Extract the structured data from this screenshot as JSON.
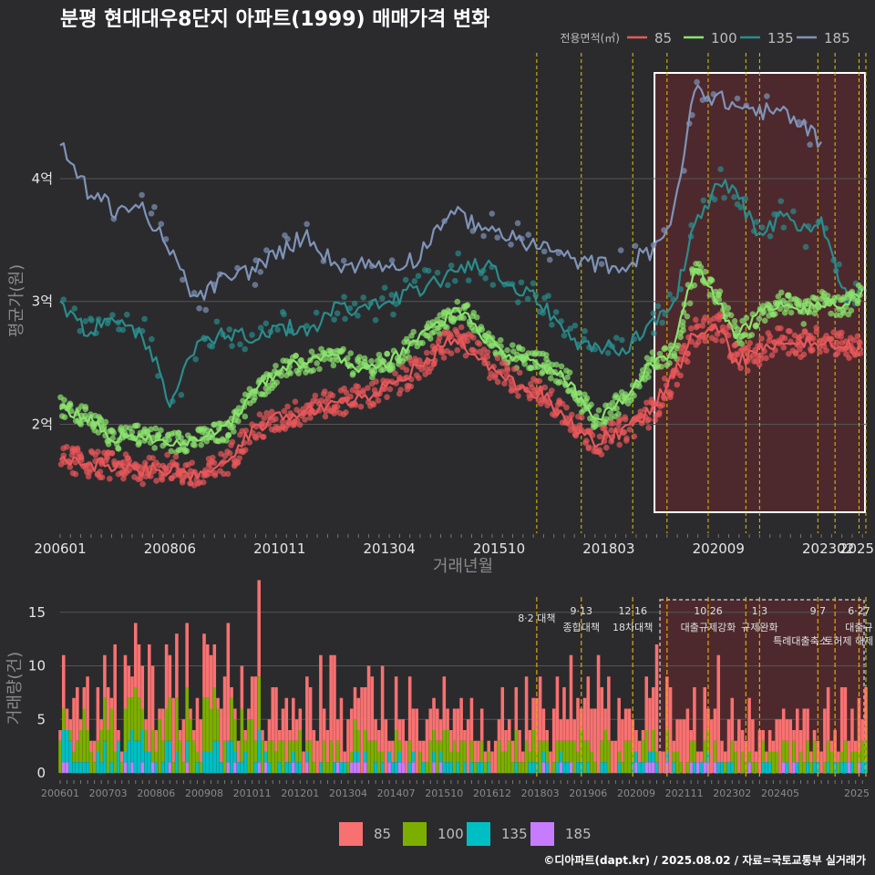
{
  "title": "분평 현대대우8단지 아파트(1999) 매매가격 변화",
  "legend_title": "전용면적(㎡)",
  "credit": "©디아파트(dapt.kr) / 2025.08.02 / 자료=국토교통부 실거래가",
  "colors": {
    "85": "#e8575a",
    "100": "#8be36e",
    "135": "#2a8c8c",
    "185": "#7f93b8"
  },
  "bar_colors": {
    "85": "#f87171",
    "100": "#7cae00",
    "135": "#00bfc4",
    "185": "#c77cff"
  },
  "chart_data": [
    {
      "type": "line",
      "xlabel": "거래년월",
      "ylabel": "평균가(원)",
      "x_tick_labels": [
        "200601",
        "200806",
        "201011",
        "201304",
        "201510",
        "201803",
        "202009",
        "202302",
        "2025"
      ],
      "y_ticks": [
        2,
        3,
        4
      ],
      "y_tick_labels": [
        "2억",
        "3억",
        "4억"
      ],
      "ylim": [
        1.15,
        4.95
      ],
      "xlim": [
        "2006-01",
        "2025-08"
      ],
      "highlight_region": {
        "from": "2020-09",
        "to": "2025-08"
      },
      "event_lines": [
        "2017-08",
        "2018-09",
        "2019-12",
        "2020-10",
        "2021-10",
        "2022-09",
        "2023-01",
        "2024-06",
        "2024-11",
        "2025-06",
        "2025-08"
      ],
      "series": [
        {
          "name": "85",
          "points": [
            [
              "2006-01",
              1.72
            ],
            [
              "2006-09",
              1.68
            ],
            [
              "2007-05",
              1.66
            ],
            [
              "2008-01",
              1.62
            ],
            [
              "2008-09",
              1.65
            ],
            [
              "2009-05",
              1.56
            ],
            [
              "2010-01",
              1.7
            ],
            [
              "2010-09",
              1.95
            ],
            [
              "2011-05",
              2.05
            ],
            [
              "2012-01",
              2.12
            ],
            [
              "2012-09",
              2.18
            ],
            [
              "2013-05",
              2.22
            ],
            [
              "2014-01",
              2.3
            ],
            [
              "2014-09",
              2.45
            ],
            [
              "2015-05",
              2.65
            ],
            [
              "2015-09",
              2.7
            ],
            [
              "2016-05",
              2.5
            ],
            [
              "2017-01",
              2.35
            ],
            [
              "2017-09",
              2.25
            ],
            [
              "2018-05",
              2.05
            ],
            [
              "2019-01",
              1.85
            ],
            [
              "2019-09",
              1.95
            ],
            [
              "2020-05",
              2.1
            ],
            [
              "2020-12",
              2.4
            ],
            [
              "2021-06",
              2.75
            ],
            [
              "2022-01",
              2.8
            ],
            [
              "2022-06",
              2.5
            ],
            [
              "2023-01",
              2.6
            ],
            [
              "2023-07",
              2.7
            ],
            [
              "2024-01",
              2.65
            ],
            [
              "2024-07",
              2.7
            ],
            [
              "2025-01",
              2.65
            ],
            [
              "2025-07",
              2.6
            ]
          ]
        },
        {
          "name": "100",
          "points": [
            [
              "2006-01",
              2.15
            ],
            [
              "2006-09",
              2.05
            ],
            [
              "2007-05",
              1.88
            ],
            [
              "2008-01",
              1.92
            ],
            [
              "2008-09",
              1.85
            ],
            [
              "2009-05",
              1.88
            ],
            [
              "2010-01",
              1.95
            ],
            [
              "2010-09",
              2.25
            ],
            [
              "2011-05",
              2.45
            ],
            [
              "2012-01",
              2.5
            ],
            [
              "2012-09",
              2.55
            ],
            [
              "2013-05",
              2.45
            ],
            [
              "2014-01",
              2.5
            ],
            [
              "2014-09",
              2.7
            ],
            [
              "2015-05",
              2.85
            ],
            [
              "2015-09",
              2.95
            ],
            [
              "2016-05",
              2.7
            ],
            [
              "2017-01",
              2.55
            ],
            [
              "2017-09",
              2.5
            ],
            [
              "2018-05",
              2.35
            ],
            [
              "2019-01",
              2.02
            ],
            [
              "2019-09",
              2.2
            ],
            [
              "2020-05",
              2.5
            ],
            [
              "2020-12",
              2.6
            ],
            [
              "2021-06",
              3.3
            ],
            [
              "2022-01",
              3.0
            ],
            [
              "2022-06",
              2.7
            ],
            [
              "2023-01",
              2.9
            ],
            [
              "2023-07",
              3.0
            ],
            [
              "2024-01",
              2.9
            ],
            [
              "2024-07",
              3.0
            ],
            [
              "2025-01",
              2.95
            ],
            [
              "2025-07",
              3.1
            ]
          ]
        },
        {
          "name": "135",
          "points": [
            [
              "2006-01",
              2.98
            ],
            [
              "2006-09",
              2.75
            ],
            [
              "2007-05",
              2.85
            ],
            [
              "2008-01",
              2.75
            ],
            [
              "2008-09",
              2.2
            ],
            [
              "2009-05",
              2.65
            ],
            [
              "2010-01",
              2.75
            ],
            [
              "2010-09",
              2.7
            ],
            [
              "2011-05",
              2.8
            ],
            [
              "2012-01",
              2.75
            ],
            [
              "2012-09",
              2.95
            ],
            [
              "2013-05",
              2.95
            ],
            [
              "2014-01",
              3.0
            ],
            [
              "2014-09",
              3.1
            ],
            [
              "2015-05",
              3.2
            ],
            [
              "2015-09",
              3.3
            ],
            [
              "2016-05",
              3.3
            ],
            [
              "2017-01",
              3.1
            ],
            [
              "2017-09",
              3.0
            ],
            [
              "2018-05",
              2.7
            ],
            [
              "2019-01",
              2.65
            ],
            [
              "2019-09",
              2.6
            ],
            [
              "2020-05",
              2.8
            ],
            [
              "2020-12",
              3.0
            ],
            [
              "2021-06",
              3.6
            ],
            [
              "2022-01",
              3.95
            ],
            [
              "2022-06",
              3.9
            ],
            [
              "2023-01",
              3.5
            ],
            [
              "2023-07",
              3.7
            ],
            [
              "2024-01",
              3.55
            ],
            [
              "2024-07",
              3.7
            ],
            [
              "2025-01",
              3.1
            ],
            [
              "2025-07",
              3.1
            ]
          ]
        },
        {
          "name": "185",
          "points": [
            [
              "2006-01",
              4.28
            ],
            [
              "2006-09",
              3.9
            ],
            [
              "2007-05",
              3.75
            ],
            [
              "2008-01",
              3.78
            ],
            [
              "2008-09",
              3.4
            ],
            [
              "2009-05",
              3.0
            ],
            [
              "2010-01",
              3.2
            ],
            [
              "2010-09",
              3.25
            ],
            [
              "2011-05",
              3.4
            ],
            [
              "2012-01",
              3.55
            ],
            [
              "2012-09",
              3.3
            ],
            [
              "2013-05",
              3.3
            ],
            [
              "2014-01",
              3.3
            ],
            [
              "2014-09",
              3.35
            ],
            [
              "2015-05",
              3.68
            ],
            [
              "2015-09",
              3.7
            ],
            [
              "2016-05",
              3.6
            ],
            [
              "2017-01",
              3.52
            ],
            [
              "2017-09",
              3.45
            ],
            [
              "2018-05",
              3.35
            ],
            [
              "2019-01",
              3.3
            ],
            [
              "2019-09",
              3.3
            ],
            [
              "2020-05",
              3.4
            ],
            [
              "2020-12",
              3.7
            ],
            [
              "2021-06",
              4.72
            ],
            [
              "2022-01",
              4.65
            ],
            [
              "2022-06",
              4.6
            ],
            [
              "2023-01",
              4.55
            ],
            [
              "2023-07",
              4.55
            ],
            [
              "2024-01",
              4.45
            ],
            [
              "2024-07",
              4.3
            ]
          ]
        }
      ]
    },
    {
      "type": "bar",
      "stacked": true,
      "ylabel": "거래량(건)",
      "y_ticks": [
        0,
        5,
        10,
        15
      ],
      "ylim": [
        0,
        16
      ],
      "x_tick_labels": [
        "200601",
        "200703",
        "200806",
        "200908",
        "201011",
        "201201",
        "201304",
        "201407",
        "201510",
        "201612",
        "201803",
        "201906",
        "202009",
        "202111",
        "202302",
        "202405",
        "2025"
      ],
      "highlight_region": {
        "from": "2020-09",
        "to": "2025-08"
      },
      "event_lines": [
        "2017-08",
        "2018-09",
        "2019-12",
        "2020-10",
        "2021-10",
        "2022-09",
        "2023-01",
        "2024-06",
        "2024-11",
        "2025-06",
        "2025-08"
      ],
      "events": [
        {
          "date": "2017-08",
          "lines": [
            "8·2 대책"
          ]
        },
        {
          "date": "2018-09",
          "lines": [
            "9·13",
            "종합대책"
          ]
        },
        {
          "date": "2019-12",
          "lines": [
            "12·16",
            "18차대책"
          ]
        },
        {
          "date": "2021-10",
          "lines": [
            "10·26",
            "대출규제강화"
          ]
        },
        {
          "date": "2023-01",
          "lines": [
            "1·3",
            "규제완화"
          ]
        },
        {
          "date": "2024-01",
          "lines": [
            "",
            "특례대출축소"
          ]
        },
        {
          "date": "2024-06",
          "lines": [
            "9·7"
          ]
        },
        {
          "date": "2025-03",
          "lines": [
            "",
            "토허제 해제"
          ]
        },
        {
          "date": "2025-06",
          "lines": [
            "6·27",
            "대출규"
          ]
        }
      ],
      "series": [
        {
          "name": "85",
          "monthly_approx": "1-9"
        },
        {
          "name": "100",
          "monthly_approx": "0-5"
        },
        {
          "name": "135",
          "monthly_approx": "0-3"
        },
        {
          "name": "185",
          "monthly_approx": "0-1"
        }
      ],
      "legend": [
        "85",
        "100",
        "135",
        "185"
      ]
    }
  ]
}
